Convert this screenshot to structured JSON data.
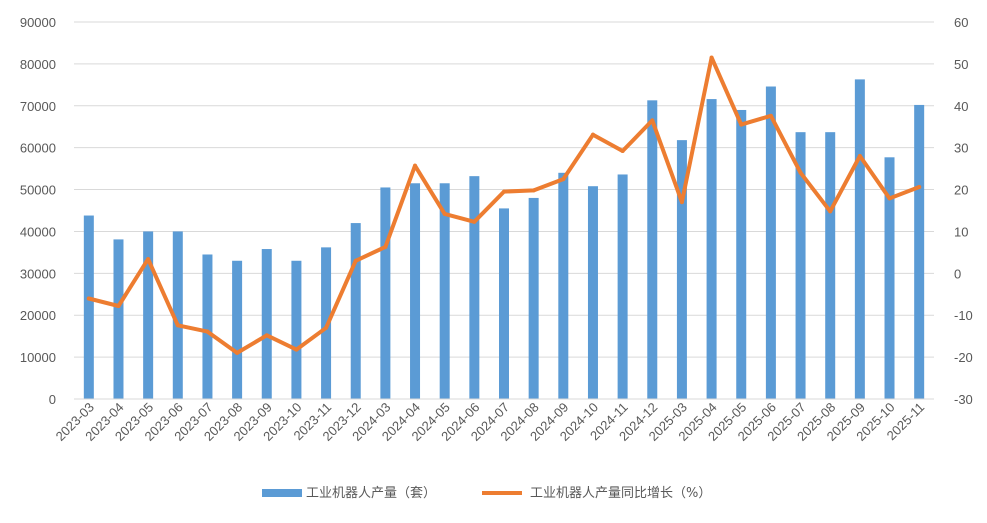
{
  "chart_data": {
    "type": "bar",
    "categories": [
      "2023-03",
      "2023-04",
      "2023-05",
      "2023-06",
      "2023-07",
      "2023-08",
      "2023-09",
      "2023-10",
      "2023-11",
      "2023-12",
      "2024-03",
      "2024-04",
      "2024-05",
      "2024-06",
      "2024-07",
      "2024-08",
      "2024-09",
      "2024-10",
      "2024-11",
      "2024-12",
      "2025-03",
      "2025-04",
      "2025-05",
      "2025-06",
      "2025-07",
      "2025-08",
      "2025-09",
      "2025-10",
      "2025-11"
    ],
    "series": [
      {
        "name": "工业机器人产量（套）",
        "type": "bar",
        "axis": "left",
        "color": "#5b9bd5",
        "values": [
          43800,
          38100,
          40000,
          40000,
          34500,
          33000,
          35800,
          33000,
          36200,
          42000,
          50500,
          51500,
          51500,
          53200,
          45500,
          48000,
          54000,
          50800,
          53600,
          71300,
          61800,
          71600,
          69000,
          74600,
          63700,
          63700,
          76300,
          57700,
          70200
        ]
      },
      {
        "name": "工业机器人产量同比增长（%）",
        "type": "line",
        "axis": "right",
        "color": "#ed7d31",
        "values": [
          -6,
          -7.8,
          3.4,
          -12.4,
          -13.9,
          -19,
          -14.8,
          -18.2,
          -13,
          3,
          6.3,
          25.7,
          14.2,
          12.3,
          19.5,
          19.8,
          22.5,
          33.1,
          29.2,
          36.5,
          17,
          51.5,
          35.5,
          37.6,
          24,
          14.8,
          28,
          17.9,
          20.6
        ]
      }
    ],
    "y_left": {
      "min": 0,
      "max": 90000,
      "step": 10000,
      "ticks": [
        "0",
        "10000",
        "20000",
        "30000",
        "40000",
        "50000",
        "60000",
        "70000",
        "80000",
        "90000"
      ]
    },
    "y_right": {
      "min": -30,
      "max": 60,
      "step": 10,
      "ticks": [
        "-30",
        "-20",
        "-10",
        "0",
        "10",
        "20",
        "30",
        "40",
        "50",
        "60"
      ]
    },
    "grid": true,
    "legend_position": "bottom",
    "legend": [
      "工业机器人产量（套）",
      "工业机器人产量同比增长（%）"
    ]
  }
}
